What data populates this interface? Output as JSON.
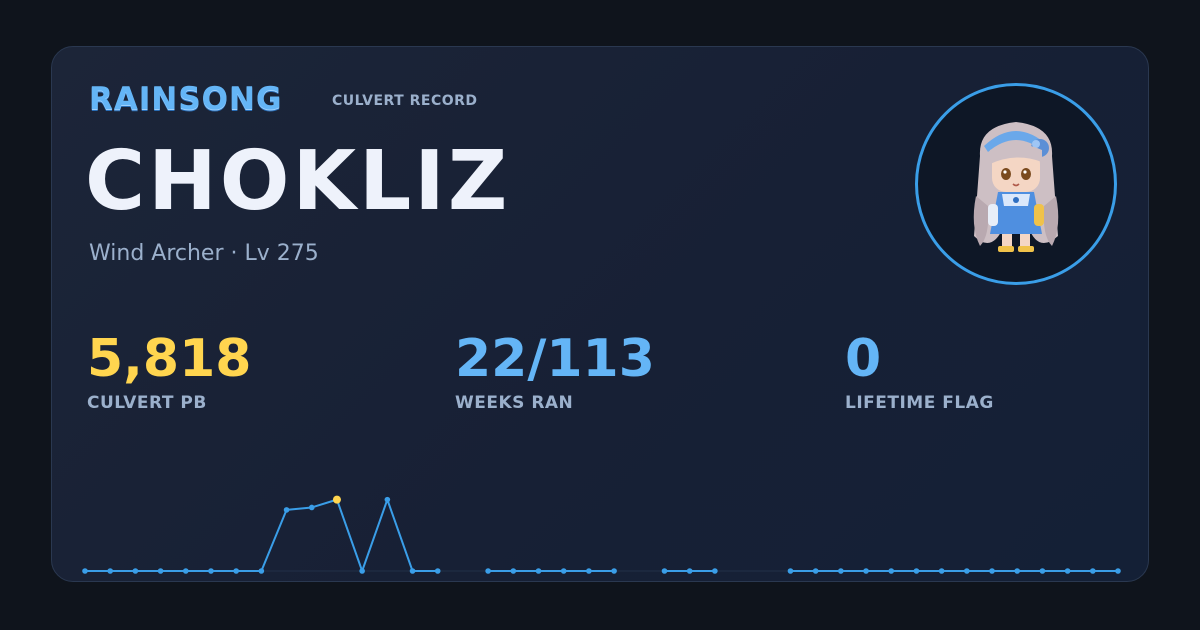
{
  "header": {
    "brand": "RAINSONG",
    "subtitle": "CULVERT RECORD"
  },
  "player": {
    "name": "CHOKLIZ",
    "meta": "Wind Archer · Lv 275",
    "avatar_icon": "character-avatar-icon"
  },
  "stats": [
    {
      "value": "5,818",
      "label": "CULVERT PB",
      "color": "#ffd54f"
    },
    {
      "value": "22/113",
      "label": "WEEKS RAN",
      "color": "#64b5f6"
    },
    {
      "value": "0",
      "label": "LIFETIME FLAG",
      "color": "#64b5f6"
    }
  ],
  "colors": {
    "accent": "#3a9ee8",
    "line": "#3a9ee8",
    "highlight": "#ffd54f",
    "background": "#0f141c",
    "card": "#1a2336"
  },
  "chart_data": {
    "type": "line",
    "x": [
      1,
      2,
      3,
      4,
      5,
      6,
      7,
      8,
      9,
      10,
      11,
      12,
      13,
      14,
      15,
      16,
      17,
      18,
      19,
      20,
      21,
      22,
      23,
      24,
      25,
      26,
      27,
      28,
      29,
      30,
      31,
      32,
      33,
      34,
      35,
      36,
      37,
      38,
      39,
      40,
      41,
      42
    ],
    "series": [
      {
        "values": [
          0,
          0,
          0,
          0,
          0,
          0,
          0,
          0,
          4980,
          5180,
          5818,
          0,
          5818,
          0,
          0,
          null,
          0,
          0,
          0,
          0,
          0,
          0,
          null,
          0,
          0,
          0,
          null,
          null,
          0,
          0,
          0,
          0,
          0,
          0,
          0,
          0,
          0,
          0,
          0,
          0,
          0,
          0
        ],
        "highlight_index": 10
      }
    ],
    "ylim": [
      0,
      7500
    ],
    "grid": false
  }
}
